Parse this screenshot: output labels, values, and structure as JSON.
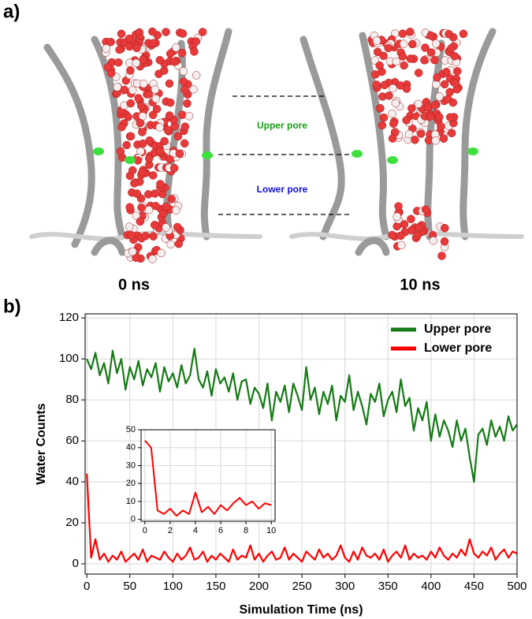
{
  "panel_a": {
    "label": "a)",
    "upper_label": "Upper pore",
    "lower_label": "Lower pore",
    "times": [
      "0 ns",
      "10 ns"
    ]
  },
  "panel_b_label": "b)",
  "chart_data": [
    {
      "type": "line",
      "xlabel": "Simulation Time (ns)",
      "ylabel": "Water Counts",
      "x": [
        0,
        5,
        10,
        15,
        20,
        25,
        30,
        35,
        40,
        45,
        50,
        55,
        60,
        65,
        70,
        75,
        80,
        85,
        90,
        95,
        100,
        105,
        110,
        115,
        120,
        125,
        130,
        135,
        140,
        145,
        150,
        155,
        160,
        165,
        170,
        175,
        180,
        185,
        190,
        195,
        200,
        205,
        210,
        215,
        220,
        225,
        230,
        235,
        240,
        245,
        250,
        255,
        260,
        265,
        270,
        275,
        280,
        285,
        290,
        295,
        300,
        305,
        310,
        315,
        320,
        325,
        330,
        335,
        340,
        345,
        350,
        355,
        360,
        365,
        370,
        375,
        380,
        385,
        390,
        395,
        400,
        405,
        410,
        415,
        420,
        425,
        430,
        435,
        440,
        445,
        450,
        455,
        460,
        465,
        470,
        475,
        480,
        485,
        490,
        495,
        500
      ],
      "series": [
        {
          "name": "Upper pore",
          "color": "#157a15",
          "values": [
            100,
            95,
            103,
            92,
            98,
            88,
            104,
            93,
            100,
            85,
            96,
            90,
            99,
            87,
            95,
            91,
            98,
            84,
            96,
            89,
            93,
            86,
            97,
            88,
            92,
            105,
            90,
            86,
            94,
            82,
            95,
            88,
            91,
            84,
            93,
            80,
            89,
            90,
            78,
            86,
            83,
            76,
            88,
            70,
            84,
            79,
            87,
            74,
            88,
            82,
            75,
            96,
            80,
            86,
            73,
            84,
            78,
            87,
            70,
            82,
            79,
            92,
            75,
            84,
            77,
            68,
            83,
            79,
            88,
            72,
            80,
            84,
            74,
            90,
            77,
            81,
            65,
            76,
            70,
            79,
            60,
            73,
            62,
            70,
            65,
            57,
            70,
            60,
            66,
            52,
            40,
            63,
            66,
            58,
            70,
            62,
            67,
            60,
            72,
            65,
            68
          ]
        },
        {
          "name": "Lower pore",
          "color": "#ff0000",
          "values": [
            44,
            3,
            12,
            2,
            5,
            1,
            4,
            2,
            6,
            1,
            3,
            5,
            2,
            7,
            1,
            4,
            3,
            2,
            6,
            3,
            1,
            5,
            2,
            4,
            8,
            2,
            3,
            6,
            1,
            4,
            2,
            5,
            3,
            1,
            7,
            2,
            4,
            3,
            9,
            2,
            5,
            1,
            4,
            6,
            2,
            3,
            8,
            2,
            5,
            3,
            1,
            6,
            4,
            2,
            7,
            3,
            5,
            2,
            4,
            9,
            3,
            1,
            6,
            2,
            8,
            4,
            3,
            5,
            2,
            7,
            1,
            4,
            6,
            3,
            9,
            2,
            5,
            3,
            4,
            2,
            6,
            3,
            8,
            4,
            2,
            5,
            3,
            7,
            4,
            12,
            5,
            3,
            6,
            4,
            8,
            2,
            5,
            7,
            3,
            6,
            5
          ]
        }
      ],
      "xlim": [
        -2,
        500
      ],
      "ylim": [
        -5,
        122
      ],
      "xticks": [
        0,
        50,
        100,
        150,
        200,
        250,
        300,
        350,
        400,
        450,
        500
      ],
      "yticks": [
        0,
        20,
        40,
        60,
        80,
        100,
        120
      ],
      "grid": true,
      "legend": "upper right"
    },
    {
      "type": "line",
      "x": [
        0,
        0.5,
        1,
        1.5,
        2,
        2.5,
        3,
        3.5,
        4,
        4.5,
        5,
        5.5,
        6,
        6.5,
        7,
        7.5,
        8,
        8.5,
        9,
        9.5,
        10
      ],
      "series": [
        {
          "color": "#ff0000",
          "values": [
            44,
            40,
            5,
            3,
            6,
            2,
            5,
            3,
            15,
            4,
            7,
            3,
            8,
            5,
            9,
            12,
            8,
            10,
            6,
            9,
            8
          ]
        }
      ],
      "xlim": [
        -0.3,
        10.3
      ],
      "ylim": [
        -1,
        50
      ],
      "xticks": [
        0,
        2,
        4,
        6,
        8,
        10
      ],
      "yticks": [
        0,
        10,
        20,
        30,
        40,
        50
      ],
      "grid": true
    }
  ]
}
